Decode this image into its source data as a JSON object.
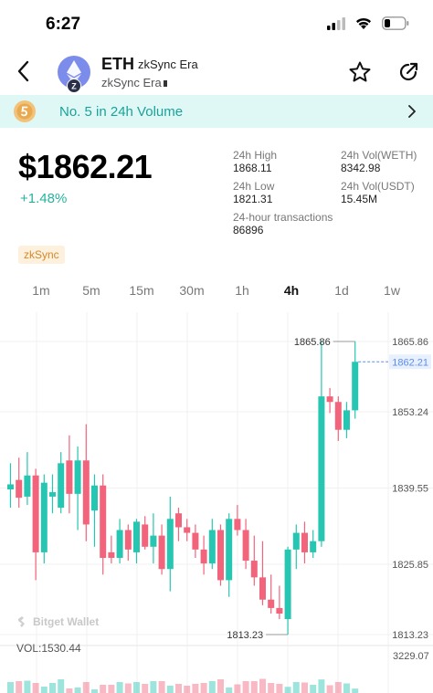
{
  "status": {
    "time": "6:27"
  },
  "header": {
    "symbol": "ETH",
    "chain_name": "zkSync Era",
    "sub_title": "zkSync Era",
    "logo_badge": "Z"
  },
  "rank_banner": {
    "text": "No. 5 in 24h Volume"
  },
  "market": {
    "price": "$1862.21",
    "change": "+1.48%",
    "stats": [
      {
        "label": "24h High",
        "value": "1868.11"
      },
      {
        "label": "24h Vol(WETH)",
        "value": "8342.98"
      },
      {
        "label": "24h Low",
        "value": "1821.31"
      },
      {
        "label": "24h Vol(USDT)",
        "value": "15.45M"
      },
      {
        "label": "24-hour transactions",
        "value": "86896"
      }
    ],
    "tag": "zkSync"
  },
  "timeframes": [
    {
      "label": "1m",
      "active": false
    },
    {
      "label": "5m",
      "active": false
    },
    {
      "label": "15m",
      "active": false
    },
    {
      "label": "30m",
      "active": false
    },
    {
      "label": "1h",
      "active": false
    },
    {
      "label": "4h",
      "active": true
    },
    {
      "label": "1d",
      "active": false
    },
    {
      "label": "1w",
      "active": false
    }
  ],
  "colors": {
    "up": "#26c6b2",
    "down": "#f2647c",
    "accent": "#1aa39a",
    "current_price_line": "#5b8def"
  },
  "chart_data": {
    "type": "candlestick",
    "y_ticks": [
      "1865.86",
      "1853.24",
      "1839.55",
      "1825.85",
      "1813.23"
    ],
    "ylim": [
      1813.23,
      1865.86
    ],
    "current_price": "1862.21",
    "high_annotation": "1865.86",
    "low_annotation": "1813.23",
    "candles": [
      {
        "o": 1839.3,
        "h": 1844.0,
        "l": 1836.0,
        "c": 1840.2
      },
      {
        "o": 1841.0,
        "h": 1845.0,
        "l": 1836.0,
        "c": 1837.8
      },
      {
        "o": 1838.0,
        "h": 1846.0,
        "l": 1836.5,
        "c": 1841.8
      },
      {
        "o": 1841.8,
        "h": 1843.0,
        "l": 1823.0,
        "c": 1828.0
      },
      {
        "o": 1828.0,
        "h": 1842.0,
        "l": 1826.0,
        "c": 1840.5
      },
      {
        "o": 1838.0,
        "h": 1842.0,
        "l": 1835.0,
        "c": 1838.8
      },
      {
        "o": 1836.0,
        "h": 1846.0,
        "l": 1835.0,
        "c": 1844.0
      },
      {
        "o": 1844.5,
        "h": 1849.0,
        "l": 1835.0,
        "c": 1838.5
      },
      {
        "o": 1838.5,
        "h": 1847.0,
        "l": 1832.0,
        "c": 1844.5
      },
      {
        "o": 1844.5,
        "h": 1851.0,
        "l": 1830.0,
        "c": 1833.0
      },
      {
        "o": 1835.5,
        "h": 1842.0,
        "l": 1829.0,
        "c": 1840.0
      },
      {
        "o": 1840.0,
        "h": 1842.0,
        "l": 1824.0,
        "c": 1827.0
      },
      {
        "o": 1828.0,
        "h": 1831.0,
        "l": 1826.0,
        "c": 1827.0
      },
      {
        "o": 1827.0,
        "h": 1834.0,
        "l": 1826.0,
        "c": 1832.0
      },
      {
        "o": 1832.0,
        "h": 1833.0,
        "l": 1826.5,
        "c": 1828.5
      },
      {
        "o": 1828.0,
        "h": 1834.0,
        "l": 1826.0,
        "c": 1833.5
      },
      {
        "o": 1833.0,
        "h": 1834.5,
        "l": 1828.5,
        "c": 1829.0
      },
      {
        "o": 1829.0,
        "h": 1835.0,
        "l": 1826.0,
        "c": 1831.0
      },
      {
        "o": 1831.0,
        "h": 1833.0,
        "l": 1824.0,
        "c": 1825.0
      },
      {
        "o": 1825.0,
        "h": 1838.0,
        "l": 1821.0,
        "c": 1834.0
      },
      {
        "o": 1835.0,
        "h": 1836.0,
        "l": 1830.0,
        "c": 1832.5
      },
      {
        "o": 1832.5,
        "h": 1834.0,
        "l": 1830.0,
        "c": 1831.5
      },
      {
        "o": 1831.5,
        "h": 1833.0,
        "l": 1827.0,
        "c": 1828.5
      },
      {
        "o": 1828.5,
        "h": 1831.0,
        "l": 1824.0,
        "c": 1826.0
      },
      {
        "o": 1826.0,
        "h": 1834.0,
        "l": 1825.0,
        "c": 1832.0
      },
      {
        "o": 1832.0,
        "h": 1833.0,
        "l": 1822.0,
        "c": 1823.0
      },
      {
        "o": 1823.0,
        "h": 1835.0,
        "l": 1820.0,
        "c": 1834.0
      },
      {
        "o": 1834.0,
        "h": 1836.5,
        "l": 1831.0,
        "c": 1832.0
      },
      {
        "o": 1832.0,
        "h": 1834.0,
        "l": 1825.0,
        "c": 1826.5
      },
      {
        "o": 1826.5,
        "h": 1831.0,
        "l": 1822.0,
        "c": 1823.5
      },
      {
        "o": 1823.5,
        "h": 1830.0,
        "l": 1818.5,
        "c": 1819.5
      },
      {
        "o": 1819.5,
        "h": 1824.0,
        "l": 1817.0,
        "c": 1818.0
      },
      {
        "o": 1818.0,
        "h": 1822.0,
        "l": 1816.0,
        "c": 1817.0
      },
      {
        "o": 1816.0,
        "h": 1829.0,
        "l": 1813.23,
        "c": 1828.5
      },
      {
        "o": 1828.5,
        "h": 1833.0,
        "l": 1825.0,
        "c": 1831.5
      },
      {
        "o": 1831.5,
        "h": 1833.5,
        "l": 1826.0,
        "c": 1828.0
      },
      {
        "o": 1828.0,
        "h": 1832.0,
        "l": 1827.0,
        "c": 1830.0
      },
      {
        "o": 1830.0,
        "h": 1865.86,
        "l": 1829.0,
        "c": 1856.0
      },
      {
        "o": 1856.0,
        "h": 1857.5,
        "l": 1853.0,
        "c": 1855.0
      },
      {
        "o": 1855.0,
        "h": 1856.0,
        "l": 1848.0,
        "c": 1850.0
      },
      {
        "o": 1850.0,
        "h": 1855.0,
        "l": 1848.5,
        "c": 1853.5
      },
      {
        "o": 1853.5,
        "h": 1865.86,
        "l": 1852.0,
        "c": 1862.21
      }
    ],
    "volume_label": "VOL:1530.44",
    "volume_max": "3229.07"
  },
  "watermark": "Bitget Wallet"
}
